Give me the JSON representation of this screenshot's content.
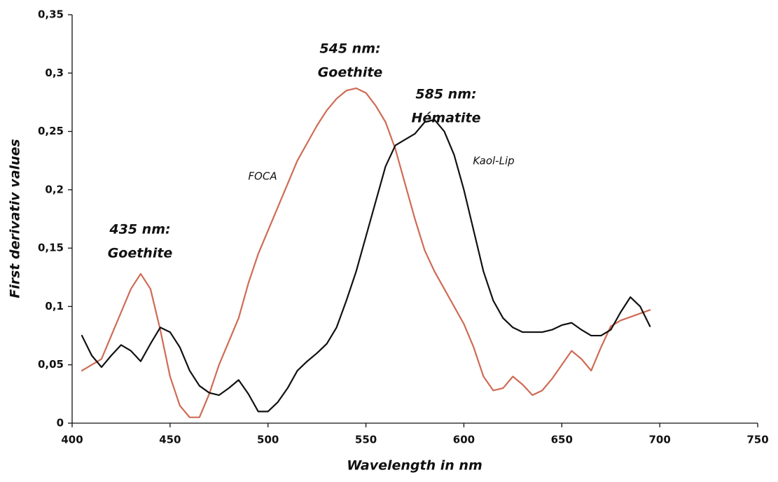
{
  "chart_data": {
    "type": "line",
    "x_label": "Wavelength in nm",
    "y_label": "First derivativ values",
    "x": [
      405,
      410,
      415,
      420,
      425,
      430,
      435,
      440,
      445,
      450,
      455,
      460,
      465,
      470,
      475,
      480,
      485,
      490,
      495,
      500,
      505,
      510,
      515,
      520,
      525,
      530,
      535,
      540,
      545,
      550,
      555,
      560,
      565,
      570,
      575,
      580,
      585,
      590,
      595,
      600,
      605,
      610,
      615,
      620,
      625,
      630,
      635,
      640,
      645,
      650,
      655,
      660,
      665,
      670,
      675,
      680,
      685,
      690,
      695
    ],
    "series": [
      {
        "name": "FOCA",
        "color": "#cf6b55",
        "values": [
          0.045,
          0.05,
          0.055,
          0.075,
          0.095,
          0.115,
          0.128,
          0.115,
          0.08,
          0.04,
          0.015,
          0.005,
          0.005,
          0.025,
          0.05,
          0.07,
          0.09,
          0.12,
          0.145,
          0.165,
          0.185,
          0.205,
          0.225,
          0.24,
          0.255,
          0.268,
          0.278,
          0.285,
          0.287,
          0.283,
          0.272,
          0.258,
          0.235,
          0.205,
          0.175,
          0.148,
          0.13,
          0.115,
          0.1,
          0.085,
          0.065,
          0.04,
          0.028,
          0.03,
          0.04,
          0.033,
          0.024,
          0.028,
          0.038,
          0.05,
          0.062,
          0.055,
          0.045,
          0.065,
          0.083,
          0.088,
          0.091,
          0.094,
          0.097
        ]
      },
      {
        "name": "Kaol-Lip",
        "color": "#111111",
        "values": [
          0.075,
          0.058,
          0.048,
          0.058,
          0.067,
          0.062,
          0.053,
          0.068,
          0.082,
          0.078,
          0.065,
          0.045,
          0.032,
          0.026,
          0.024,
          0.03,
          0.037,
          0.025,
          0.01,
          0.01,
          0.018,
          0.03,
          0.045,
          0.053,
          0.06,
          0.068,
          0.082,
          0.105,
          0.13,
          0.16,
          0.19,
          0.22,
          0.238,
          0.243,
          0.248,
          0.258,
          0.26,
          0.25,
          0.23,
          0.2,
          0.165,
          0.13,
          0.105,
          0.09,
          0.082,
          0.078,
          0.078,
          0.078,
          0.08,
          0.084,
          0.086,
          0.08,
          0.075,
          0.075,
          0.08,
          0.095,
          0.108,
          0.1,
          0.083
        ]
      }
    ],
    "annotations": [
      [
        "435 nm:",
        "Goethite"
      ],
      [
        "545 nm:",
        "Goethite"
      ],
      [
        "585 nm:",
        "Hématite"
      ]
    ],
    "xlim": [
      400,
      750
    ],
    "xticks": [
      400,
      450,
      500,
      550,
      600,
      650,
      700,
      750
    ],
    "ylim": [
      0,
      0.35
    ],
    "yticks": [
      0,
      {
        "value": 0.05,
        "label": "0,05"
      },
      {
        "value": 0.1,
        "label": "0,1"
      },
      {
        "value": 0.15,
        "label": "0,15"
      },
      {
        "value": 0.2,
        "label": "0,2"
      },
      {
        "value": 0.25,
        "label": "0,25"
      },
      {
        "value": 0.3,
        "label": "0,3"
      },
      {
        "value": 0.35,
        "label": "0,35"
      }
    ],
    "grid": false
  }
}
